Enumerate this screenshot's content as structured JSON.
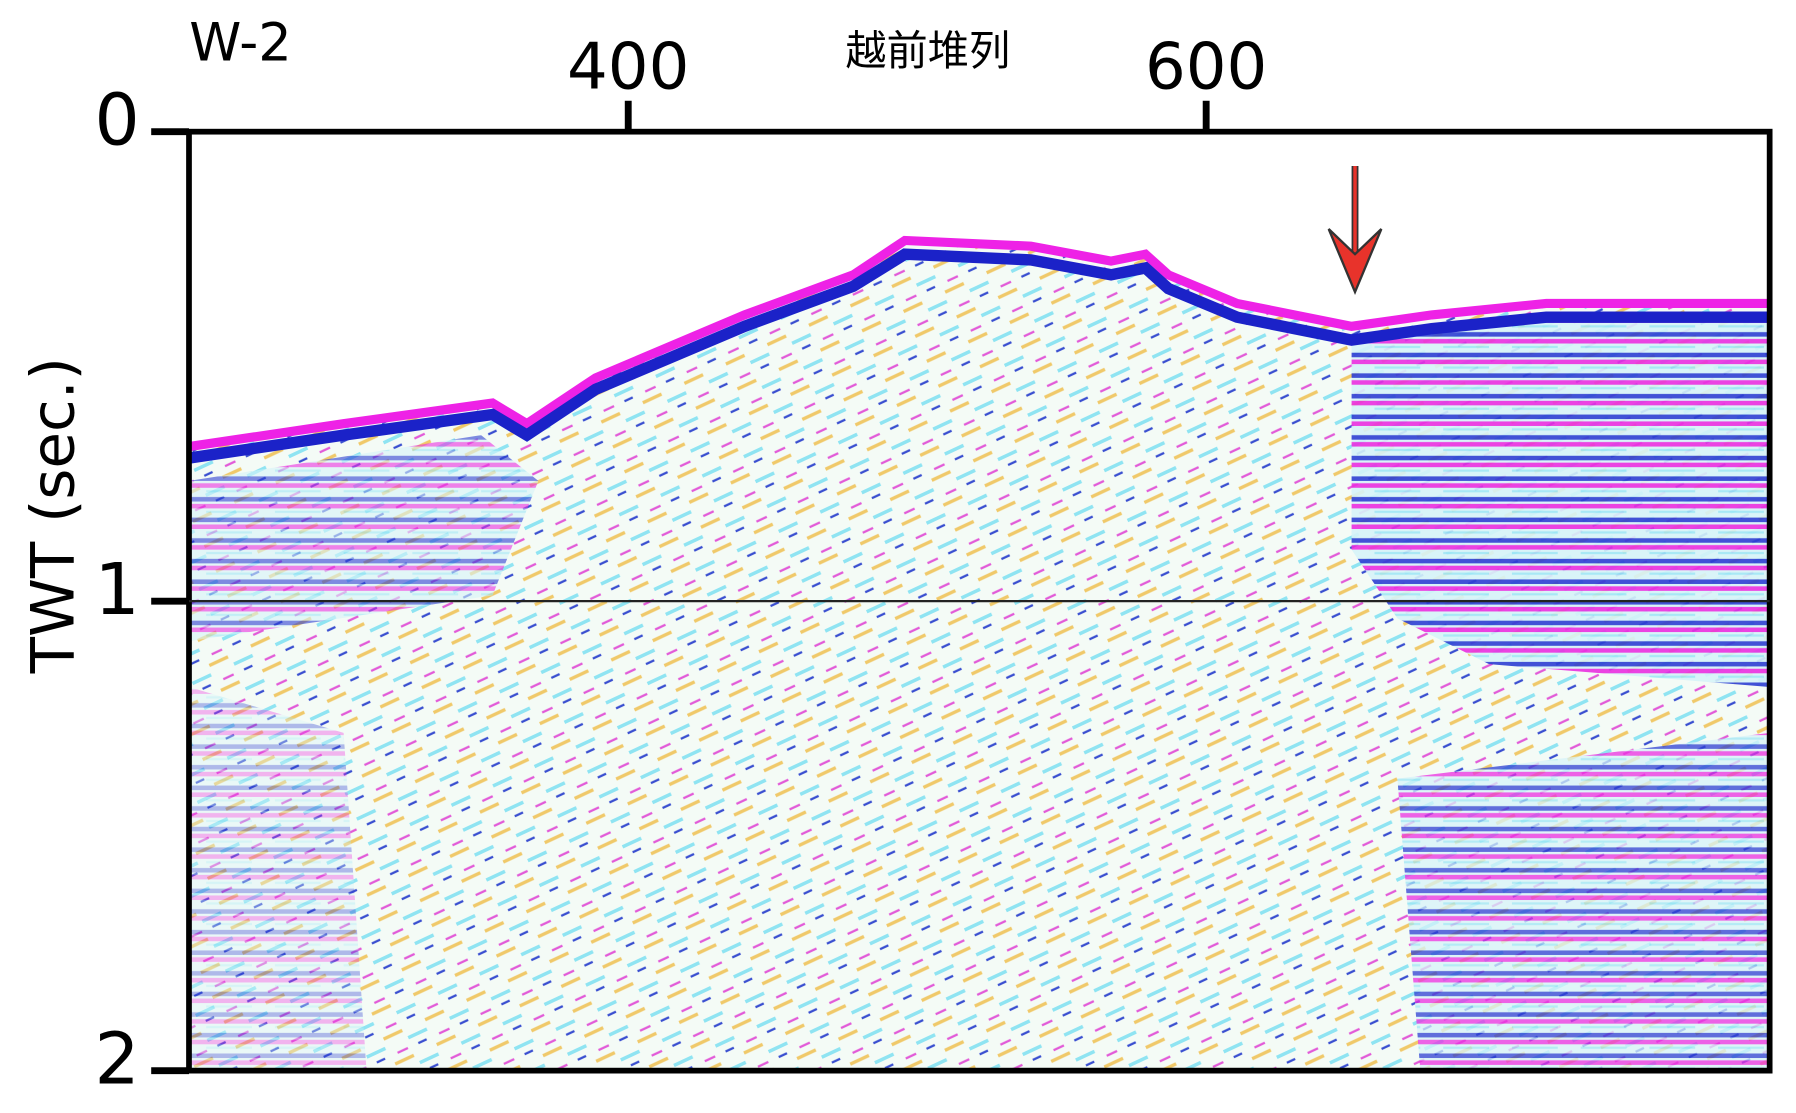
{
  "chart_data": {
    "type": "seismic-section",
    "title": "W-2",
    "subtitle": "越前堆列",
    "ylabel": "TWT (sec.)",
    "xlim": [
      248,
      795
    ],
    "xticks": [
      400,
      600
    ],
    "ylim": [
      0,
      2
    ],
    "yticks": [
      0,
      1,
      2
    ],
    "y_inverted": true,
    "hline": 1
  }
}
